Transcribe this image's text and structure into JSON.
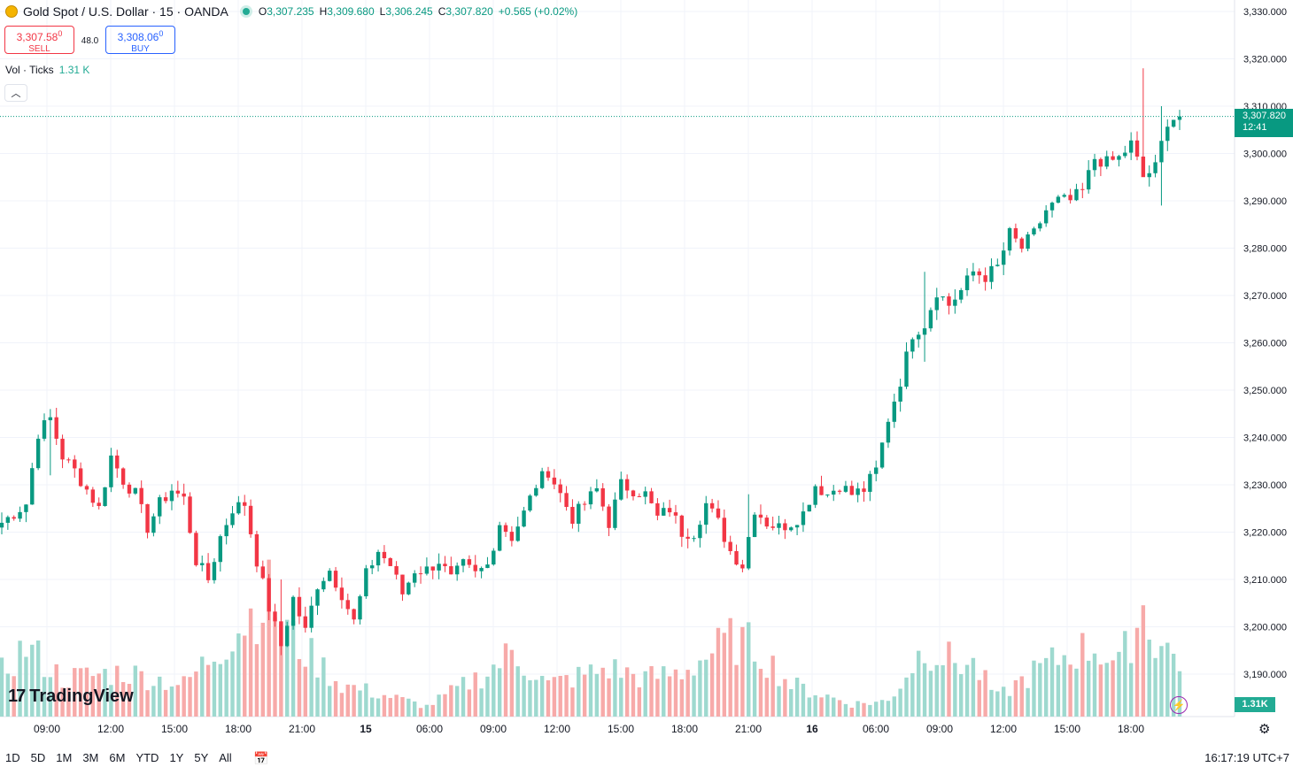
{
  "header": {
    "symbol": "Gold Spot / U.S. Dollar · 15 · OANDA",
    "ohlc": [
      {
        "k": "O",
        "v": "3,307.235"
      },
      {
        "k": "H",
        "v": "3,309.680"
      },
      {
        "k": "L",
        "v": "3,306.245"
      },
      {
        "k": "C",
        "v": "3,307.820"
      },
      {
        "k": "",
        "v": "+0.565 (+0.02%)"
      }
    ]
  },
  "trade": {
    "sell_price": "3,307.58",
    "sell_sup": "0",
    "sell_label": "SELL",
    "spread": "48.0",
    "buy_price": "3,308.06",
    "buy_sup": "0",
    "buy_label": "BUY"
  },
  "volume": {
    "label": "Vol · Ticks",
    "value": "1.31 K",
    "axis_value": "1.31K"
  },
  "last_price": {
    "price": "3,307.820",
    "countdown": "12:41"
  },
  "brand": "TradingView",
  "ranges": [
    "1D",
    "5D",
    "1M",
    "3M",
    "6M",
    "YTD",
    "1Y",
    "5Y",
    "All"
  ],
  "clock": "16:17:19 UTC+7",
  "icons": {
    "collapse": "chevron-up-icon",
    "bolt": "lightning-icon",
    "settings": "gear-icon",
    "calendar": "calendar-icon"
  },
  "colors": {
    "up": "#089981",
    "down": "#f23645",
    "vol_up": "#9ed9cf",
    "vol_down": "#f7aaa9",
    "grid": "#f0f3fa"
  },
  "chart_data": {
    "type": "candlestick",
    "y_axis": {
      "ticks": [
        3190,
        3200,
        3210,
        3220,
        3230,
        3240,
        3250,
        3260,
        3270,
        3280,
        3290,
        3300,
        3310,
        3320,
        3330
      ],
      "tick_labels": [
        "3,190.000",
        "3,200.000",
        "3,210.000",
        "3,220.000",
        "3,230.000",
        "3,240.000",
        "3,250.000",
        "3,260.000",
        "3,270.000",
        "3,280.000",
        "3,290.000",
        "3,300.000",
        "3,310.000",
        "3,320.000",
        "3,330.000"
      ]
    },
    "x_axis": {
      "tick_labels": [
        "09:00",
        "12:00",
        "15:00",
        "18:00",
        "21:00",
        "15",
        "06:00",
        "09:00",
        "12:00",
        "15:00",
        "18:00",
        "21:00",
        "16",
        "06:00",
        "09:00",
        "12:00",
        "15:00",
        "18:00"
      ]
    },
    "last": 3307.82,
    "path": [
      [
        0,
        3222
      ],
      [
        4,
        3226
      ],
      [
        6,
        3241
      ],
      [
        8,
        3244
      ],
      [
        10,
        3236
      ],
      [
        12,
        3233
      ],
      [
        16,
        3225
      ],
      [
        18,
        3236
      ],
      [
        20,
        3231
      ],
      [
        22,
        3228
      ],
      [
        24,
        3221
      ],
      [
        26,
        3226
      ],
      [
        28,
        3229
      ],
      [
        30,
        3227
      ],
      [
        32,
        3214
      ],
      [
        34,
        3210
      ],
      [
        36,
        3219
      ],
      [
        38,
        3225
      ],
      [
        40,
        3226
      ],
      [
        42,
        3214
      ],
      [
        44,
        3204
      ],
      [
        46,
        3196
      ],
      [
        48,
        3206
      ],
      [
        50,
        3199
      ],
      [
        52,
        3209
      ],
      [
        54,
        3212
      ],
      [
        56,
        3207
      ],
      [
        58,
        3201
      ],
      [
        60,
        3211
      ],
      [
        62,
        3216
      ],
      [
        64,
        3213
      ],
      [
        66,
        3207
      ],
      [
        68,
        3212
      ],
      [
        70,
        3212
      ],
      [
        72,
        3214
      ],
      [
        74,
        3210
      ],
      [
        76,
        3213
      ],
      [
        78,
        3211
      ],
      [
        80,
        3213
      ],
      [
        82,
        3222
      ],
      [
        84,
        3219
      ],
      [
        86,
        3224
      ],
      [
        88,
        3230
      ],
      [
        90,
        3233
      ],
      [
        92,
        3228
      ],
      [
        94,
        3223
      ],
      [
        96,
        3226
      ],
      [
        98,
        3229
      ],
      [
        100,
        3222
      ],
      [
        102,
        3230
      ],
      [
        104,
        3229
      ],
      [
        106,
        3228
      ],
      [
        108,
        3223
      ],
      [
        110,
        3225
      ],
      [
        112,
        3220
      ],
      [
        114,
        3220
      ],
      [
        116,
        3226
      ],
      [
        118,
        3222
      ],
      [
        120,
        3216
      ],
      [
        122,
        3213
      ],
      [
        124,
        3225
      ],
      [
        126,
        3222
      ],
      [
        128,
        3221
      ],
      [
        130,
        3222
      ],
      [
        132,
        3224
      ],
      [
        134,
        3230
      ],
      [
        136,
        3228
      ],
      [
        138,
        3230
      ],
      [
        140,
        3228
      ],
      [
        142,
        3229
      ],
      [
        144,
        3233
      ],
      [
        146,
        3244
      ],
      [
        148,
        3252
      ],
      [
        150,
        3262
      ],
      [
        152,
        3264
      ],
      [
        154,
        3271
      ],
      [
        156,
        3268
      ],
      [
        158,
        3271
      ],
      [
        160,
        3275
      ],
      [
        162,
        3274
      ],
      [
        164,
        3276
      ],
      [
        166,
        3283
      ],
      [
        168,
        3280
      ],
      [
        170,
        3283
      ],
      [
        172,
        3288
      ],
      [
        174,
        3290
      ],
      [
        176,
        3290
      ],
      [
        178,
        3292
      ],
      [
        180,
        3299
      ],
      [
        182,
        3298
      ],
      [
        184,
        3299
      ],
      [
        186,
        3302
      ],
      [
        188,
        3295
      ],
      [
        190,
        3297
      ],
      [
        192,
        3307
      ],
      [
        194,
        3308
      ]
    ],
    "highlights": [
      {
        "i": 8,
        "h": 3246,
        "l": 3232
      },
      {
        "i": 46,
        "h": 3210,
        "l": 3194
      },
      {
        "i": 123,
        "h": 3228,
        "l": 3212
      },
      {
        "i": 152,
        "h": 3275,
        "l": 3256
      },
      {
        "i": 188,
        "h": 3318,
        "l": 3296
      },
      {
        "i": 191,
        "h": 3310,
        "l": 3289
      }
    ],
    "volume_peaks": [
      [
        0,
        0.35
      ],
      [
        4,
        0.55
      ],
      [
        10,
        0.3
      ],
      [
        20,
        0.35
      ],
      [
        30,
        0.25
      ],
      [
        36,
        0.55
      ],
      [
        44,
        0.95
      ],
      [
        48,
        0.6
      ],
      [
        56,
        0.25
      ],
      [
        62,
        0.18
      ],
      [
        70,
        0.08
      ],
      [
        80,
        0.35
      ],
      [
        84,
        0.5
      ],
      [
        90,
        0.25
      ],
      [
        100,
        0.38
      ],
      [
        106,
        0.3
      ],
      [
        112,
        0.35
      ],
      [
        120,
        0.6
      ],
      [
        124,
        0.55
      ],
      [
        130,
        0.25
      ],
      [
        140,
        0.1
      ],
      [
        146,
        0.12
      ],
      [
        152,
        0.55
      ],
      [
        156,
        0.45
      ],
      [
        160,
        0.4
      ],
      [
        164,
        0.15
      ],
      [
        170,
        0.35
      ],
      [
        176,
        0.5
      ],
      [
        180,
        0.55
      ],
      [
        184,
        0.4
      ],
      [
        188,
        0.85
      ],
      [
        190,
        0.6
      ],
      [
        194,
        0.45
      ]
    ]
  }
}
